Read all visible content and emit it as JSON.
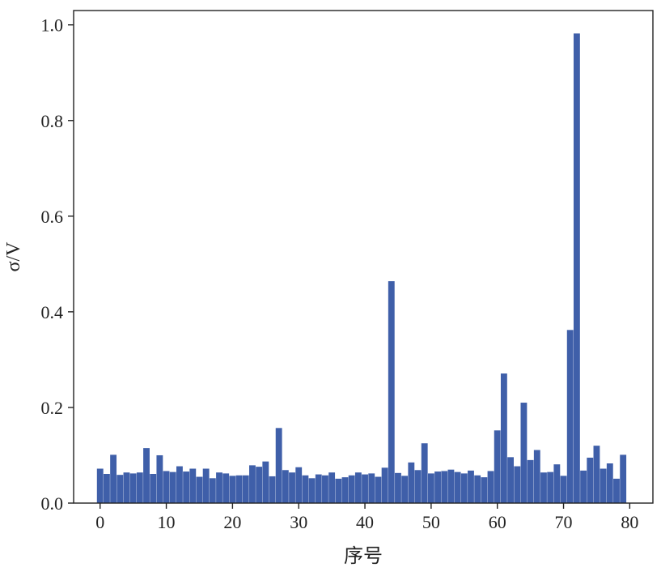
{
  "chart_data": {
    "type": "bar",
    "title": "",
    "xlabel": "序号",
    "ylabel": "σ/V",
    "xlim": [
      -4,
      83.5
    ],
    "ylim": [
      0,
      1.03
    ],
    "xticks": [
      0,
      10,
      20,
      30,
      40,
      50,
      60,
      70,
      80
    ],
    "xtick_labels": [
      "0",
      "10",
      "20",
      "30",
      "40",
      "50",
      "60",
      "70",
      "80"
    ],
    "yticks": [
      0.0,
      0.2,
      0.4,
      0.6,
      0.8,
      1.0
    ],
    "ytick_labels": [
      "0.0",
      "0.2",
      "0.4",
      "0.6",
      "0.8",
      "1.0"
    ],
    "grid": false,
    "bar_color": "#3f5fa9",
    "x": [
      0,
      1,
      2,
      3,
      4,
      5,
      6,
      7,
      8,
      9,
      10,
      11,
      12,
      13,
      14,
      15,
      16,
      17,
      18,
      19,
      20,
      21,
      22,
      23,
      24,
      25,
      26,
      27,
      28,
      29,
      30,
      31,
      32,
      33,
      34,
      35,
      36,
      37,
      38,
      39,
      40,
      41,
      42,
      43,
      44,
      45,
      46,
      47,
      48,
      49,
      50,
      51,
      52,
      53,
      54,
      55,
      56,
      57,
      58,
      59,
      60,
      61,
      62,
      63,
      64,
      65,
      66,
      67,
      68,
      69,
      70,
      71,
      72,
      73,
      74,
      75,
      76,
      77,
      78,
      79
    ],
    "values": [
      0.072,
      0.061,
      0.101,
      0.059,
      0.064,
      0.062,
      0.064,
      0.115,
      0.061,
      0.1,
      0.067,
      0.065,
      0.077,
      0.066,
      0.072,
      0.055,
      0.072,
      0.052,
      0.064,
      0.062,
      0.057,
      0.058,
      0.058,
      0.079,
      0.076,
      0.087,
      0.056,
      0.157,
      0.069,
      0.064,
      0.075,
      0.058,
      0.052,
      0.06,
      0.058,
      0.064,
      0.051,
      0.054,
      0.058,
      0.064,
      0.06,
      0.062,
      0.055,
      0.074,
      0.464,
      0.063,
      0.057,
      0.085,
      0.069,
      0.125,
      0.062,
      0.066,
      0.067,
      0.07,
      0.065,
      0.062,
      0.068,
      0.058,
      0.054,
      0.067,
      0.152,
      0.271,
      0.096,
      0.077,
      0.21,
      0.09,
      0.111,
      0.064,
      0.065,
      0.081,
      0.057,
      0.362,
      0.982,
      0.068,
      0.095,
      0.12,
      0.072,
      0.083,
      0.051,
      0.101
    ]
  }
}
